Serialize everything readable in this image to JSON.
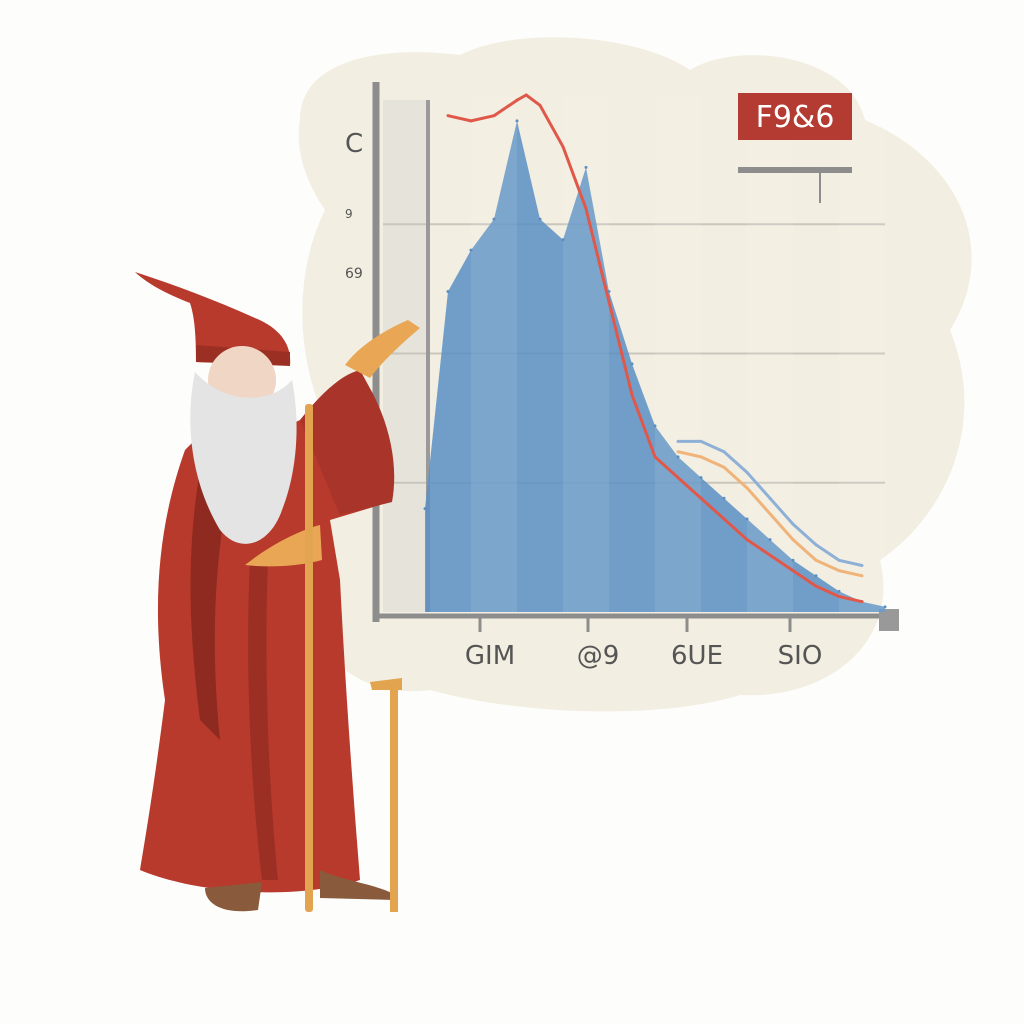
{
  "chart_data": {
    "type": "area",
    "title": "",
    "xlabel": "",
    "ylabel": "",
    "badge": "F9&6",
    "y_tick_labels": [
      "C",
      "9",
      "69"
    ],
    "x_tick_labels": [
      "GIM",
      "@9",
      "6UE",
      "SIO"
    ],
    "series": [
      {
        "kind": "area",
        "color": "#5b8fc4",
        "x": [
          0,
          5,
          10,
          15,
          20,
          25,
          30,
          35,
          40,
          45,
          50,
          55,
          60,
          65,
          70,
          75,
          80,
          85,
          90,
          95,
          100
        ],
        "values": [
          20,
          62,
          70,
          76,
          95,
          76,
          72,
          86,
          62,
          48,
          36,
          30,
          26,
          22,
          18,
          14,
          10,
          7,
          4,
          2,
          1
        ]
      },
      {
        "kind": "line",
        "color": "#e0584a",
        "x": [
          5,
          10,
          15,
          20,
          22,
          25,
          30,
          35,
          40,
          45,
          50,
          55,
          60,
          65,
          70,
          75,
          80,
          85,
          90,
          95
        ],
        "values": [
          96,
          95,
          96,
          99,
          100,
          98,
          90,
          78,
          60,
          42,
          30,
          26,
          22,
          18,
          14,
          11,
          8,
          5,
          3,
          2
        ]
      },
      {
        "kind": "line",
        "color": "#f0b37a",
        "x": [
          55,
          60,
          65,
          70,
          75,
          80,
          85,
          90,
          95
        ],
        "values": [
          31,
          30,
          28,
          24,
          19,
          14,
          10,
          8,
          7
        ]
      },
      {
        "kind": "line",
        "color": "#8fb0d6",
        "x": [
          55,
          60,
          65,
          70,
          75,
          80,
          85,
          90,
          95
        ],
        "values": [
          33,
          33,
          31,
          27,
          22,
          17,
          13,
          10,
          9
        ]
      }
    ],
    "xlim": [
      0,
      100
    ],
    "ylim": [
      0,
      100
    ],
    "grid": true
  },
  "colors": {
    "backdrop": "#f2eee1",
    "robe": "#b83a2c",
    "robe_dark": "#8f2a20",
    "beard": "#e4e4e4",
    "staff": "#e3a44f",
    "badge": "#b33b32"
  }
}
